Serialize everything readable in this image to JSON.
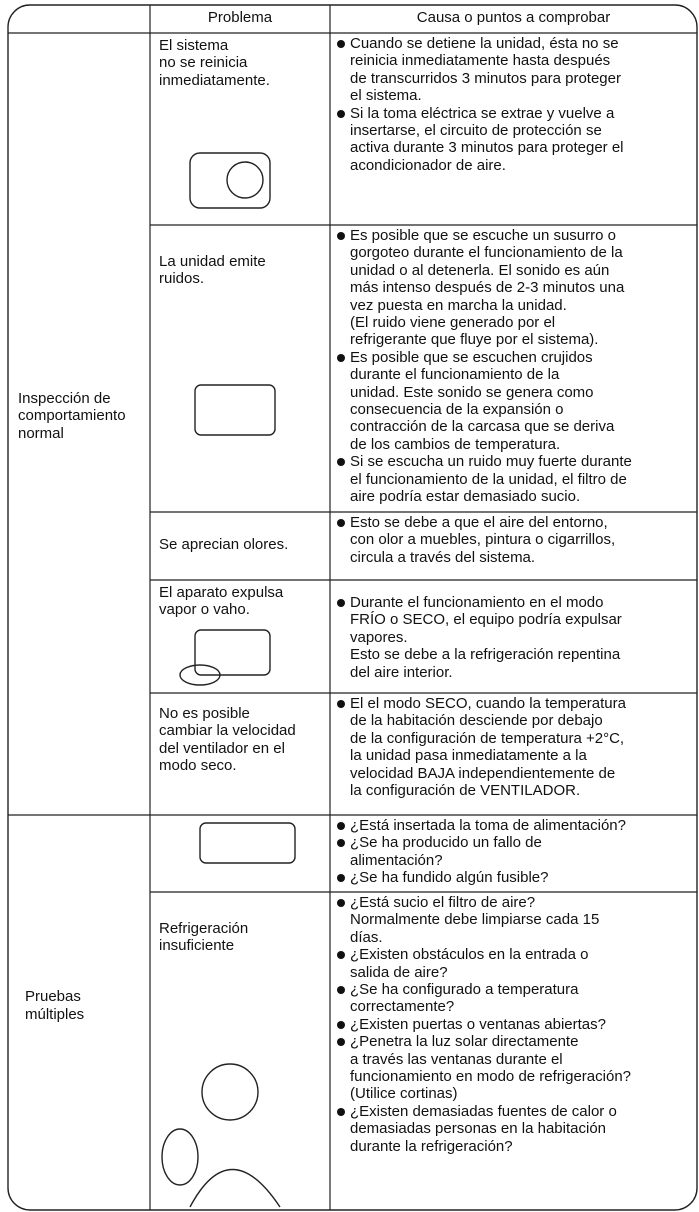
{
  "header": [
    "Problema",
    "Causa o puntos a comprobar"
  ],
  "groups": [
    {
      "label": [
        "Inspección de",
        "comportamiento",
        "normal"
      ],
      "rows": [
        {
          "problem": [
            "El sistema",
            "no se reinicia",
            "inmediatamente."
          ],
          "causes": [
            [
              "Cuando se detiene la unidad, ésta no se",
              "reinicia inmediatamente hasta después",
              "de transcurridos 3 minutos para proteger",
              "el sistema."
            ],
            [
              "Si la toma eléctrica se extrae y vuelve a",
              "insertarse, el circuito de protección se",
              "activa durante 3 minutos para proteger el",
              "acondicionador de aire."
            ]
          ]
        },
        {
          "problem": [
            "La unidad emite",
            "ruidos."
          ],
          "causes": [
            [
              "Es posible que se escuche un susurro o",
              "gorgoteo durante el funcionamiento de la",
              "unidad o al detenerla. El sonido es aún",
              "más intenso después de 2-3 minutos una",
              "vez puesta en marcha la unidad.",
              "(El ruido viene generado por el",
              "refrigerante que fluye por el sistema)."
            ],
            [
              "Es posible que se escuchen crujidos",
              "durante el funcionamiento de la",
              "unidad. Este sonido se genera como",
              "consecuencia de la expansión o",
              "contracción de la carcasa que se deriva",
              "de los cambios de temperatura."
            ],
            [
              "Si se escucha un ruido muy fuerte durante",
              "el funcionamiento de la unidad, el filtro de",
              "aire podría estar demasiado sucio."
            ]
          ]
        },
        {
          "problem": [
            "Se aprecian olores."
          ],
          "causes": [
            [
              "Esto se debe a que el aire del entorno,",
              "con olor a muebles, pintura o cigarrillos,",
              "circula a través del sistema."
            ]
          ]
        },
        {
          "problem": [
            "El aparato expulsa",
            "vapor o vaho."
          ],
          "causes": [
            [
              "Durante el funcionamiento en el modo",
              "FRÍO o SECO, el equipo podría expulsar",
              "vapores.",
              "Esto se debe a la refrigeración repentina",
              "del aire interior."
            ]
          ]
        },
        {
          "problem": [
            "No es posible",
            "cambiar la velocidad",
            "del ventilador en el",
            "modo seco."
          ],
          "causes": [
            [
              "El el modo SECO, cuando la temperatura",
              "de la habitación desciende por debajo",
              "de la configuración de temperatura +2°C,",
              "la unidad pasa inmediatamente a la",
              "velocidad BAJA independientemente de",
              "la configuración de VENTILADOR."
            ]
          ]
        }
      ]
    },
    {
      "label": [
        "Pruebas",
        "múltiples"
      ],
      "rows": [
        {
          "problem": [],
          "causes": [
            [
              "¿Está insertada la toma de alimentación?"
            ],
            [
              "¿Se ha producido un fallo de",
              "alimentación?"
            ],
            [
              "¿Se ha fundido algún fusible?"
            ]
          ]
        },
        {
          "problem": [
            "Refrigeración",
            "insuficiente"
          ],
          "causes": [
            [
              "¿Está sucio el filtro de aire?",
              "Normalmente debe limpiarse cada 15",
              "días."
            ],
            [
              "¿Existen obstáculos en la entrada o",
              "salida de aire?"
            ],
            [
              "¿Se ha configurado a temperatura",
              "correctamente?"
            ],
            [
              "¿Existen puertas o ventanas abiertas?"
            ],
            [
              "¿Penetra la luz solar directamente",
              "a través las ventanas durante el",
              "funcionamiento en modo de refrigeración?",
              "(Utilice cortinas)"
            ],
            [
              "¿Existen demasiadas fuentes de calor o",
              "demasiadas personas en la habitación",
              "durante la refrigeración?"
            ]
          ]
        }
      ]
    }
  ]
}
